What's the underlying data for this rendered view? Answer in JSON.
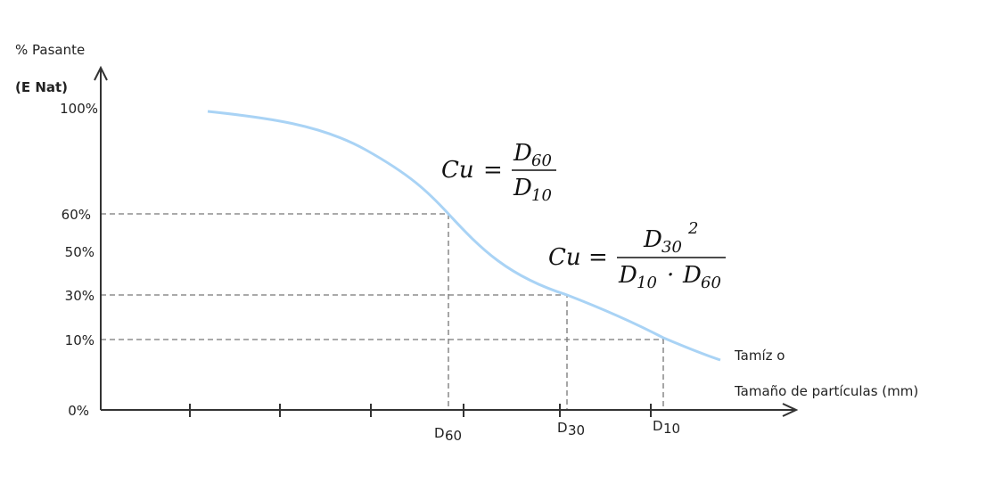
{
  "y_axis": {
    "title": "% Pasante",
    "subtitle": "(E Nat)",
    "ticks": [
      "100%",
      "60%",
      "50%",
      "30%",
      "10%",
      "0%"
    ]
  },
  "x_axis": {
    "title_line1": "Tamíz o",
    "title_line2": "Tamaño de partículas (mm)",
    "markers": [
      {
        "letter": "D",
        "sub": "60"
      },
      {
        "letter": "D",
        "sub": "30"
      },
      {
        "letter": "D",
        "sub": "10"
      }
    ]
  },
  "formulas": [
    {
      "lhs": "Cu",
      "equals": "=",
      "numerator": {
        "letter": "D",
        "sub": "60"
      },
      "denominator": {
        "letter": "D",
        "sub": "10"
      }
    },
    {
      "lhs": "Cu",
      "equals": "=",
      "numerator": {
        "letter": "D",
        "sub": "30",
        "sup": "2"
      },
      "denominator": [
        {
          "letter": "D",
          "sub": "10"
        },
        {
          "dot": "·"
        },
        {
          "letter": "D",
          "sub": "60"
        }
      ]
    }
  ]
}
